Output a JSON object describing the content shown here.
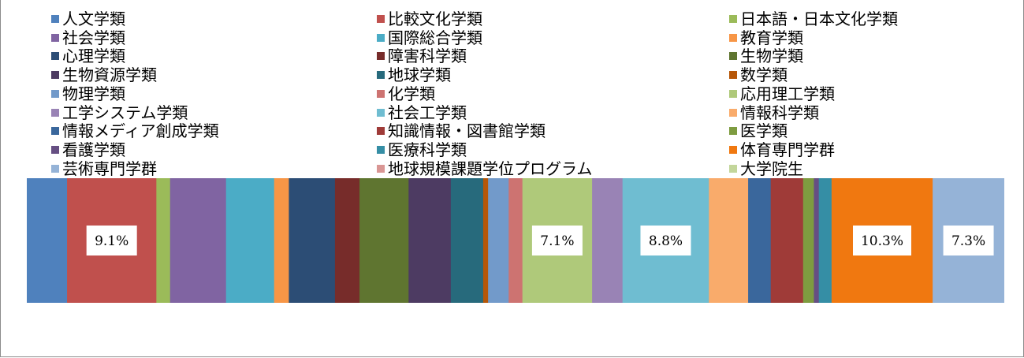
{
  "chart_data": {
    "type": "bar",
    "stacked": true,
    "orientation": "horizontal",
    "xlim": [
      0,
      100
    ],
    "unit": "%",
    "legend_position": "top",
    "series": [
      {
        "name": "人文学類",
        "value": 4.1,
        "color": "#4F81BD"
      },
      {
        "name": "比較文化学類",
        "value": 9.1,
        "color": "#C0504D",
        "label": "9.1%"
      },
      {
        "name": "日本語・日本文化学類",
        "value": 1.4,
        "color": "#9BBB59"
      },
      {
        "name": "社会学類",
        "value": 5.7,
        "color": "#8064A2"
      },
      {
        "name": "国際総合学類",
        "value": 4.9,
        "color": "#4BACC6"
      },
      {
        "name": "教育学類",
        "value": 1.5,
        "color": "#F79646"
      },
      {
        "name": "心理学類",
        "value": 4.7,
        "color": "#2C4D75"
      },
      {
        "name": "障害科学類",
        "value": 2.5,
        "color": "#772C2A"
      },
      {
        "name": "生物学類",
        "value": 5.0,
        "color": "#5F7530"
      },
      {
        "name": "生物資源学類",
        "value": 4.3,
        "color": "#4D3B62"
      },
      {
        "name": "地球学類",
        "value": 3.3,
        "color": "#276A7C"
      },
      {
        "name": "数学類",
        "value": 0.5,
        "color": "#B65708"
      },
      {
        "name": "物理学類",
        "value": 2.1,
        "color": "#729ACA"
      },
      {
        "name": "化学類",
        "value": 1.4,
        "color": "#CD7371"
      },
      {
        "name": "応用理工学類",
        "value": 7.1,
        "color": "#AFC97A",
        "label": "7.1%"
      },
      {
        "name": "工学システム学類",
        "value": 3.1,
        "color": "#9983B5"
      },
      {
        "name": "社会工学類",
        "value": 8.8,
        "color": "#6FBDD1",
        "label": "8.8%"
      },
      {
        "name": "情報科学類",
        "value": 4.0,
        "color": "#F9AB6B"
      },
      {
        "name": "情報メディア創成学類",
        "value": 2.3,
        "color": "#3A679C"
      },
      {
        "name": "知識情報・図書館学類",
        "value": 3.3,
        "color": "#9F3B38"
      },
      {
        "name": "医学類",
        "value": 1.1,
        "color": "#7E9C40"
      },
      {
        "name": "看護学類",
        "value": 0.5,
        "color": "#664F83"
      },
      {
        "name": "医療科学類",
        "value": 1.3,
        "color": "#358EA5"
      },
      {
        "name": "体育専門学群",
        "value": 10.3,
        "color": "#F07810",
        "label": "10.3%"
      },
      {
        "name": "芸術専門学群",
        "value": 7.3,
        "color": "#95B3D7",
        "label": "7.3%"
      },
      {
        "name": "地球規模課題学位プログラム",
        "value": 0.0,
        "color": "#D99694"
      },
      {
        "name": "大学院生",
        "value": 0.0,
        "color": "#C3D69B"
      }
    ]
  }
}
